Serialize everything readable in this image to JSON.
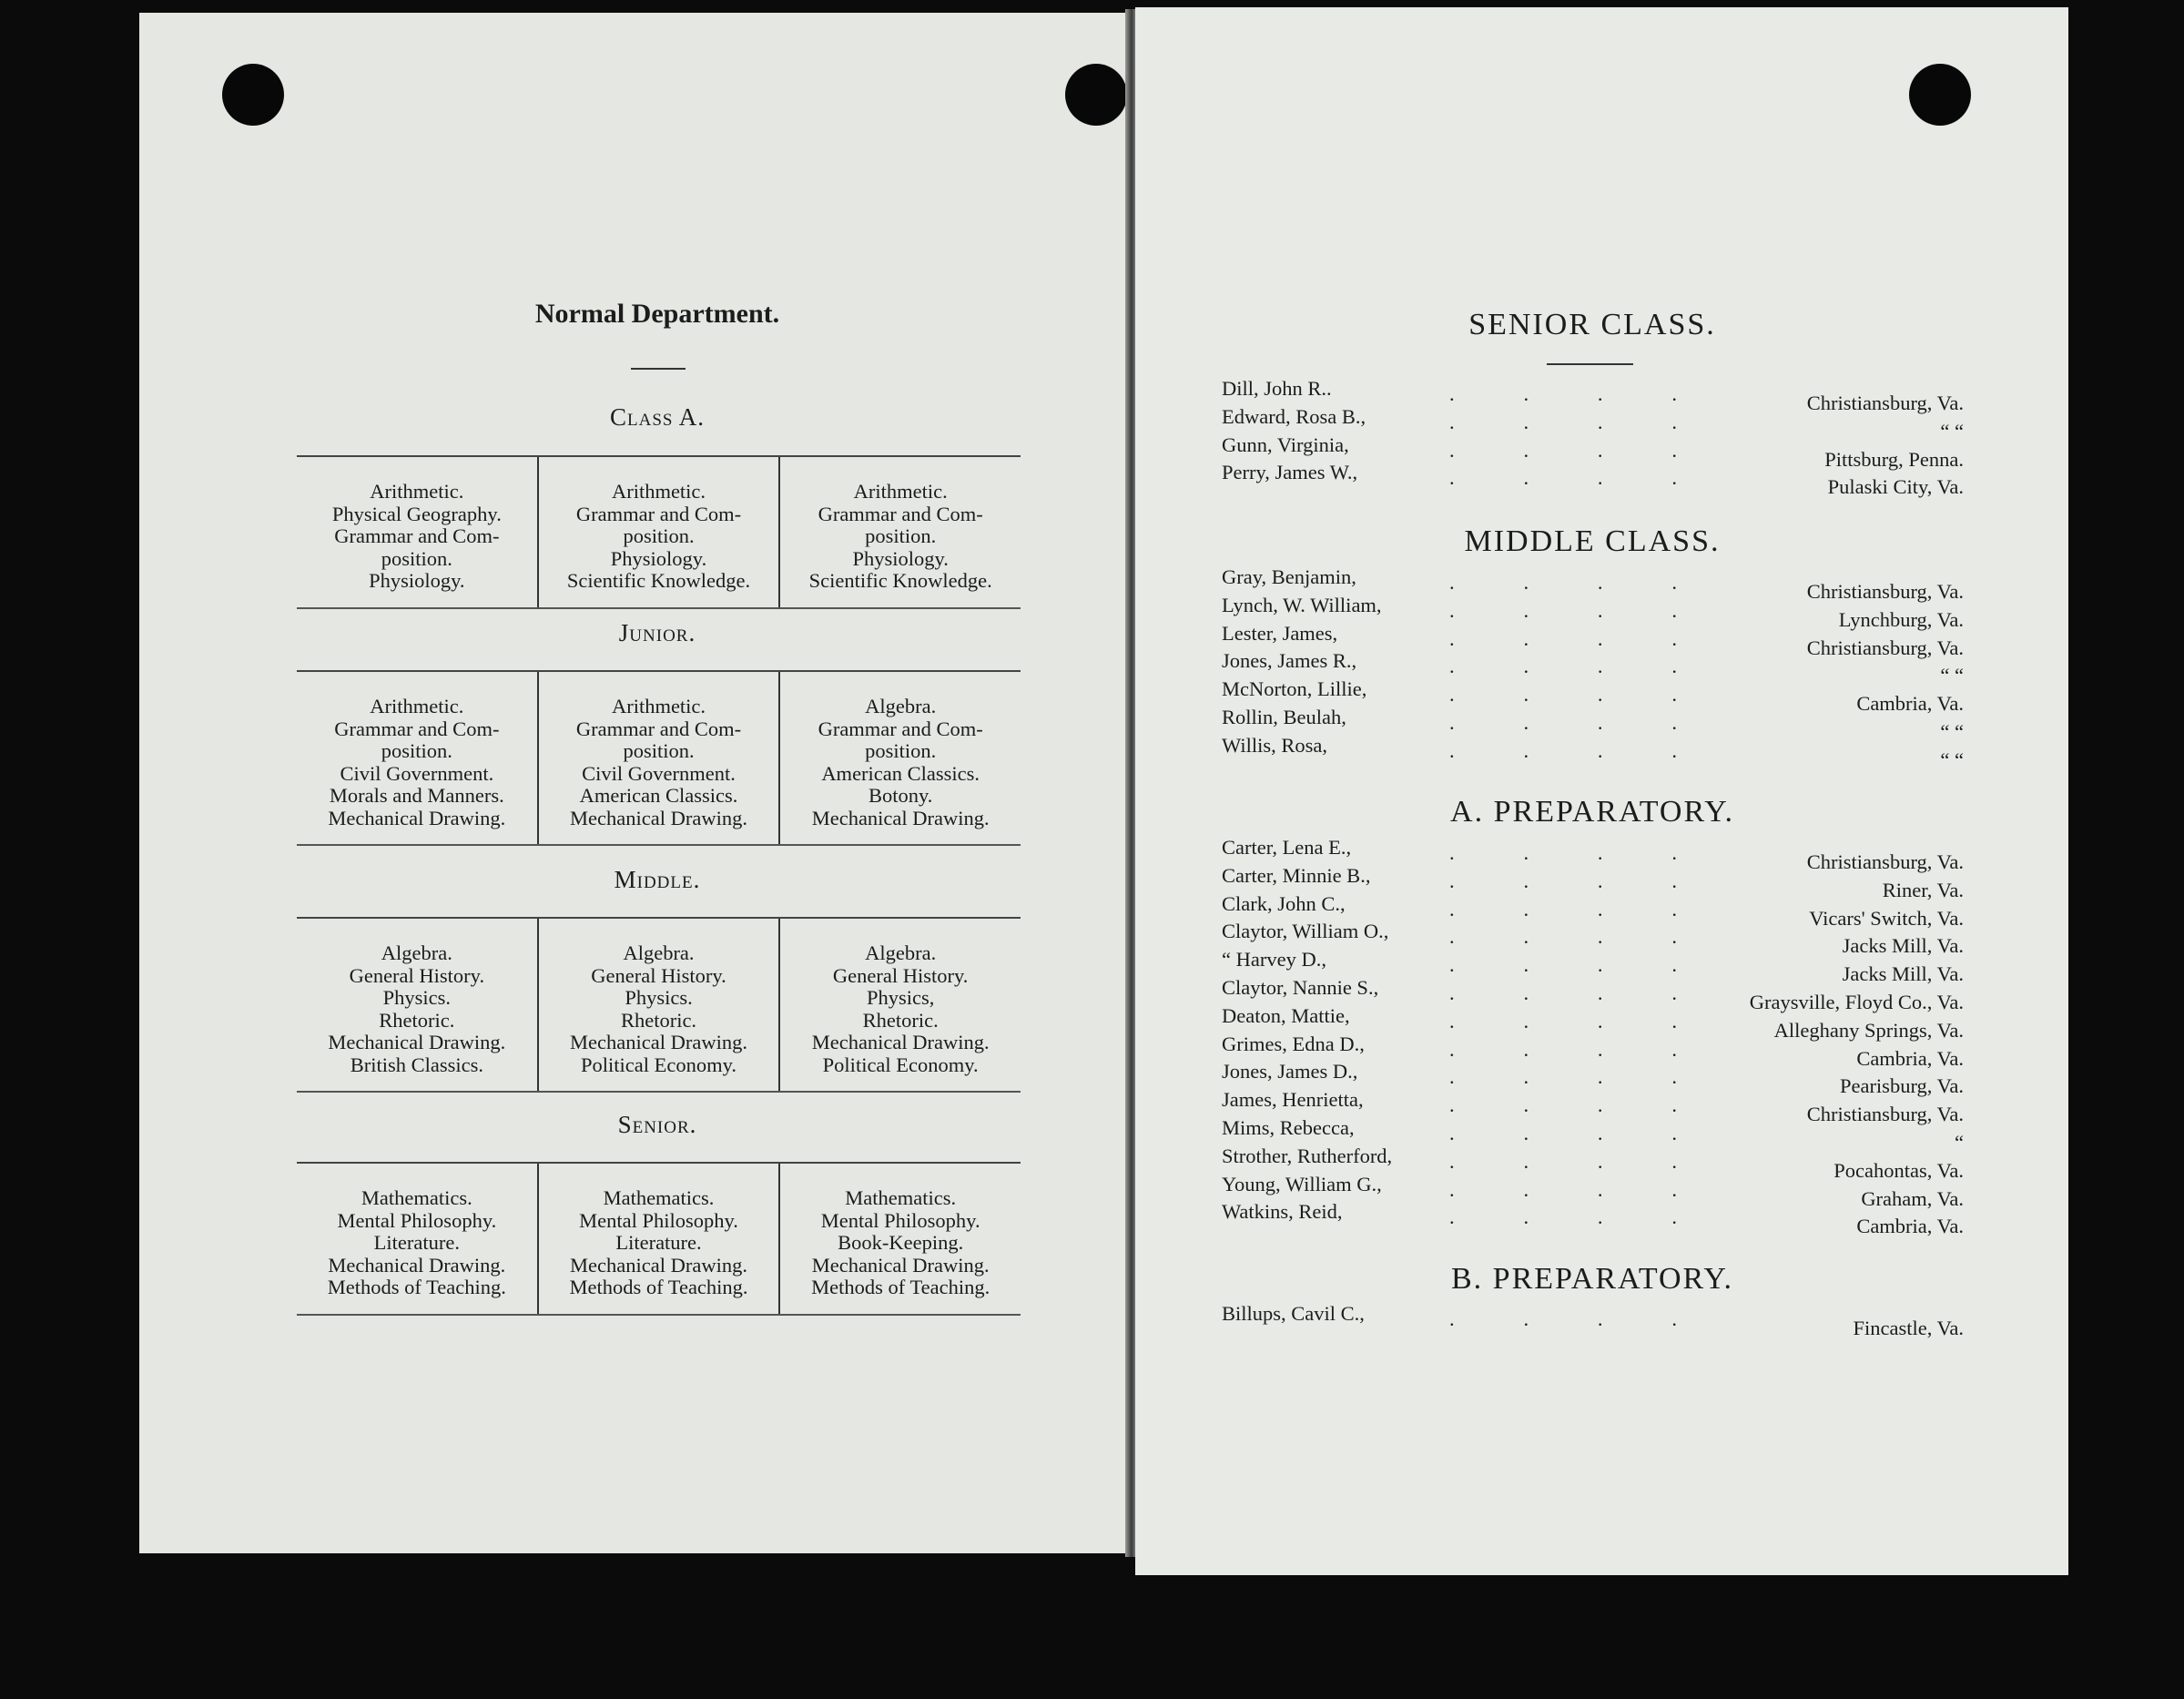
{
  "left_page": {
    "title": "Normal Department.",
    "sections": [
      {
        "heading": "Class A.",
        "columns": [
          [
            "Arithmetic.",
            "Physical Geography.",
            "Grammar and Com-",
            "position.",
            "Physiology."
          ],
          [
            "Arithmetic.",
            "Grammar and Com-",
            "position.",
            "Physiology.",
            "Scientific Knowledge."
          ],
          [
            "Arithmetic.",
            "Grammar and Com-",
            "position.",
            "Physiology.",
            "Scientific Knowledge."
          ]
        ]
      },
      {
        "heading": "Junior.",
        "columns": [
          [
            "Arithmetic.",
            "Grammar and Com-",
            "position.",
            "Civil Government.",
            "Morals and Manners.",
            "Mechanical Drawing."
          ],
          [
            "Arithmetic.",
            "Grammar and Com-",
            "position.",
            "Civil Government.",
            "American Classics.",
            "Mechanical Drawing."
          ],
          [
            "Algebra.",
            "Grammar and Com-",
            "position.",
            "American Classics.",
            "Botony.",
            "Mechanical Drawing."
          ]
        ]
      },
      {
        "heading": "Middle.",
        "columns": [
          [
            "Algebra.",
            "General History.",
            "Physics.",
            "Rhetoric.",
            "Mechanical Drawing.",
            "British Classics."
          ],
          [
            "Algebra.",
            "General History.",
            "Physics.",
            "Rhetoric.",
            "Mechanical Drawing.",
            "Political Economy."
          ],
          [
            "Algebra.",
            "General History.",
            "Physics,",
            "Rhetoric.",
            "Mechanical Drawing.",
            "Political Economy."
          ]
        ]
      },
      {
        "heading": "Senior.",
        "columns": [
          [
            "Mathematics.",
            "Mental Philosophy.",
            "Literature.",
            "Mechanical Drawing.",
            "Methods of Teaching."
          ],
          [
            "Mathematics.",
            "Mental Philosophy.",
            "Literature.",
            "Mechanical Drawing.",
            "Methods of Teaching."
          ],
          [
            "Mathematics.",
            "Mental Philosophy.",
            "Book-Keeping.",
            "Mechanical Drawing.",
            "Methods of Teaching."
          ]
        ]
      }
    ]
  },
  "right_page": {
    "groups": [
      {
        "heading": "SENIOR CLASS.",
        "rows": [
          {
            "name": "Dill, John R..",
            "place": "Christiansburg, Va."
          },
          {
            "name": "Edward, Rosa B.,",
            "place": "“          “"
          },
          {
            "name": "Gunn, Virginia,",
            "place": "Pittsburg, Penna."
          },
          {
            "name": "Perry, James W.,",
            "place": "Pulaski City, Va."
          }
        ]
      },
      {
        "heading": "MIDDLE CLASS.",
        "rows": [
          {
            "name": "Gray, Benjamin,",
            "place": "Christiansburg, Va."
          },
          {
            "name": "Lynch, W. William,",
            "place": "Lynchburg, Va."
          },
          {
            "name": "Lester, James,",
            "place": "Christiansburg, Va."
          },
          {
            "name": "Jones, James R.,",
            "place": "“          “"
          },
          {
            "name": "McNorton, Lillie,",
            "place": "Cambria, Va."
          },
          {
            "name": "Rollin, Beulah,",
            "place": "“       “"
          },
          {
            "name": "Willis, Rosa,",
            "place": "“       “"
          }
        ]
      },
      {
        "heading": "A. PREPARATORY.",
        "rows": [
          {
            "name": "Carter, Lena E.,",
            "place": "Christiansburg, Va."
          },
          {
            "name": "Carter, Minnie B.,",
            "place": "Riner, Va."
          },
          {
            "name": "Clark, John C.,",
            "place": "Vicars' Switch, Va."
          },
          {
            "name": "Claytor, William O.,",
            "place": "Jacks Mill, Va."
          },
          {
            "name": "“      Harvey D.,",
            "place": "Jacks Mill, Va."
          },
          {
            "name": "Claytor, Nannie S.,",
            "place": "Graysville, Floyd Co., Va."
          },
          {
            "name": "Deaton, Mattie,",
            "place": "Alleghany Springs, Va."
          },
          {
            "name": "Grimes, Edna D.,",
            "place": "Cambria, Va."
          },
          {
            "name": "Jones, James D.,",
            "place": "Pearisburg, Va."
          },
          {
            "name": "James, Henrietta,",
            "place": "Christiansburg, Va."
          },
          {
            "name": "Mims, Rebecca,",
            "place": "“        "
          },
          {
            "name": "Strother, Rutherford,",
            "place": "Pocahontas, Va."
          },
          {
            "name": "Young, William G.,",
            "place": "Graham, Va."
          },
          {
            "name": "Watkins, Reid,",
            "place": "Cambria, Va."
          }
        ]
      },
      {
        "heading": "B. PREPARATORY.",
        "rows": [
          {
            "name": "Billups, Cavil C.,",
            "place": "Fincastle, Va."
          }
        ]
      }
    ]
  }
}
